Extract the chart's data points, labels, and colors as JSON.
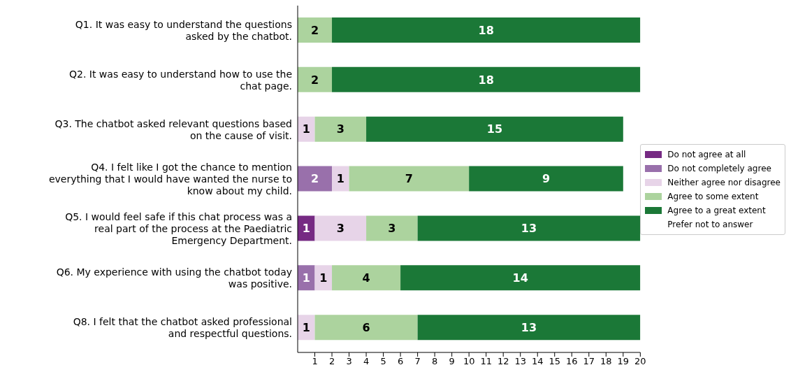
{
  "chart_data": {
    "type": "bar",
    "orientation": "horizontal",
    "stacked": true,
    "data_labels": true,
    "legend": "right",
    "grid": false,
    "categories": [
      "Q1. It was easy to understand the questions asked by the chatbot.",
      "Q2. It was easy to understand how to use the chat page.",
      "Q3. The chatbot asked relevant questions based on the cause of visit.",
      "Q4. I felt like I got the chance to mention everything that I would have wanted the nurse to know about my child.",
      "Q5. I would feel safe if this chat process was a real part of the process at the Paediatric Emergency Department.",
      "Q6. My experience with using the chatbot today was positive.",
      "Q8. I felt that the chatbot asked professional and respectful questions."
    ],
    "series": [
      {
        "name": "Do not agree at all",
        "color": "#762a83",
        "values": [
          null,
          null,
          null,
          null,
          1,
          null,
          null
        ]
      },
      {
        "name": "Do not completely agree",
        "color": "#9970ab",
        "values": [
          null,
          null,
          null,
          2,
          null,
          1,
          null
        ]
      },
      {
        "name": "Neither agree nor disagree",
        "color": "#e7d4e8",
        "values": [
          null,
          null,
          1,
          1,
          3,
          1,
          1
        ]
      },
      {
        "name": "Agree to some extent",
        "color": "#acd39e",
        "values": [
          2,
          2,
          3,
          7,
          3,
          4,
          6
        ]
      },
      {
        "name": "Agree to a great extent",
        "color": "#1b7837",
        "values": [
          18,
          18,
          15,
          9,
          13,
          14,
          13
        ]
      },
      {
        "name": "Prefer not to answer",
        "values": [
          null,
          null,
          null,
          null,
          null,
          null,
          null
        ]
      }
    ],
    "xlim": [
      0,
      20
    ],
    "xticks": [
      1,
      2,
      3,
      4,
      5,
      6,
      7,
      8,
      9,
      10,
      11,
      12,
      13,
      14,
      15,
      16,
      17,
      18,
      19,
      20
    ]
  }
}
